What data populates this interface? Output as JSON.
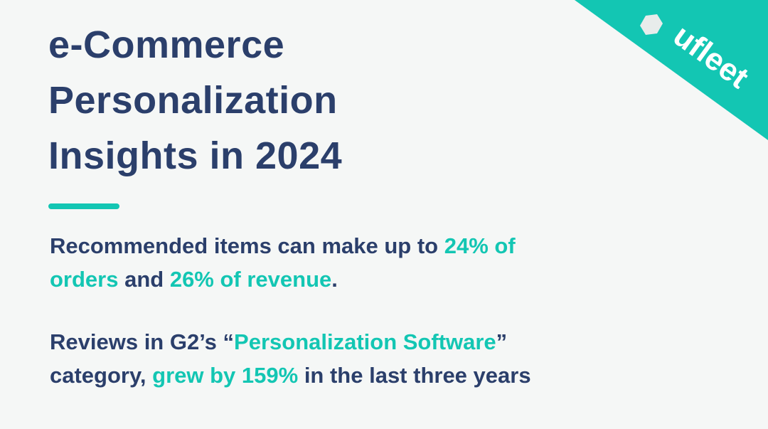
{
  "title": [
    "e-Commerce",
    "Personalization",
    "Insights in 2024"
  ],
  "paragraphs": [
    [
      [
        {
          "text": "Recommended items can make up to ",
          "highlight": false
        },
        {
          "text": "24% of",
          "highlight": true
        }
      ],
      [
        {
          "text": "orders",
          "highlight": true
        },
        {
          "text": " and ",
          "highlight": false
        },
        {
          "text": "26% of revenue",
          "highlight": true
        },
        {
          "text": ".",
          "highlight": false
        }
      ]
    ],
    [
      [
        {
          "text": "Reviews in G2’s “",
          "highlight": false
        },
        {
          "text": "Personalization Software",
          "highlight": true
        },
        {
          "text": "”",
          "highlight": false
        }
      ],
      [
        {
          "text": "category, ",
          "highlight": false
        },
        {
          "text": "grew by 159%",
          "highlight": true
        },
        {
          "text": " in the last three years",
          "highlight": false
        }
      ]
    ]
  ],
  "logo": "ufleet"
}
